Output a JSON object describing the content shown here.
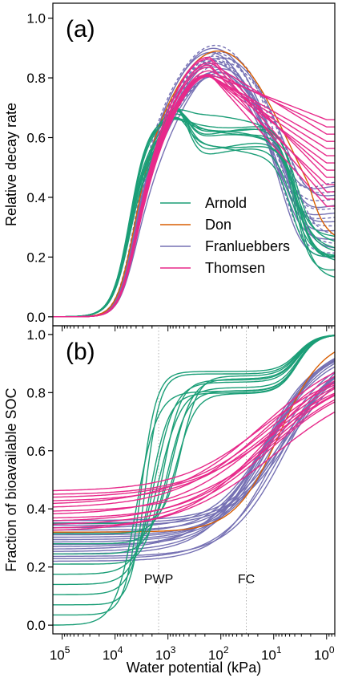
{
  "chart_data": [
    {
      "panel_label": "(a)",
      "type": "line",
      "ylabel": "Relative decay rate",
      "xlabel": "",
      "x_scale": "log-reversed",
      "xlim_kPa": [
        150000,
        0.7
      ],
      "ylim": [
        -0.03,
        1.05
      ],
      "yticks": [
        "0.0",
        "0.2",
        "0.4",
        "0.6",
        "0.8",
        "1.0"
      ],
      "legend": {
        "placement": "center-right",
        "entries": [
          {
            "name": "Arnold",
            "color": "#1b9e77"
          },
          {
            "name": "Don",
            "color": "#d95f02"
          },
          {
            "name": "Franluebbers",
            "color": "#7570b3"
          },
          {
            "name": "Thomsen",
            "color": "#e7298a"
          }
        ]
      },
      "series": [
        {
          "name": "Arnold",
          "color": "#1b9e77",
          "dashed": false,
          "count": 11,
          "peak_range": [
            0.65,
            0.72
          ],
          "plateau_range": [
            0.55,
            0.66
          ],
          "end_range": [
            0.11,
            0.25
          ]
        },
        {
          "name": "Don",
          "color": "#d95f02",
          "dashed": false,
          "count": 1,
          "peak": 0.89,
          "end": 0.25
        },
        {
          "name": "Franluebbers",
          "color": "#7570b3",
          "dashed": "mixed",
          "count": 18,
          "peak_range": [
            0.78,
            0.91
          ],
          "end_range": [
            0.2,
            0.46
          ]
        },
        {
          "name": "Thomsen",
          "color": "#e7298a",
          "dashed": false,
          "count": 13,
          "peak_range": [
            0.8,
            0.87
          ],
          "end_range": [
            0.37,
            0.66
          ]
        }
      ]
    },
    {
      "panel_label": "(b)",
      "type": "line",
      "ylabel": "Fraction of bioavailable SOC",
      "xlabel": "Water potential (kPa)",
      "x_scale": "log-reversed",
      "xlim_kPa": [
        150000,
        0.7
      ],
      "ylim": [
        -0.03,
        1.03
      ],
      "yticks": [
        "0.0",
        "0.2",
        "0.4",
        "0.6",
        "0.8",
        "1.0"
      ],
      "xticks": [
        {
          "base": "10",
          "exp": "5",
          "value": 100000
        },
        {
          "base": "10",
          "exp": "4",
          "value": 10000
        },
        {
          "base": "10",
          "exp": "3",
          "value": 1000
        },
        {
          "base": "10",
          "exp": "2",
          "value": 100
        },
        {
          "base": "10",
          "exp": "1",
          "value": 10
        },
        {
          "base": "10",
          "exp": "0",
          "value": 1
        }
      ],
      "reference_lines": [
        {
          "label": "PWP",
          "x_kPa": 1500
        },
        {
          "label": "FC",
          "x_kPa": 33
        }
      ],
      "series": [
        {
          "name": "Arnold",
          "color": "#1b9e77",
          "count": 11,
          "start_range": [
            0.0,
            0.35
          ],
          "plateau_range": [
            0.78,
            0.89
          ],
          "end": 1.0
        },
        {
          "name": "Don",
          "color": "#d95f02",
          "count": 1,
          "start": 0.32,
          "end": 0.99
        },
        {
          "name": "Franluebbers",
          "color": "#7570b3",
          "count": 18,
          "start_range": [
            0.22,
            0.36
          ],
          "end_range": [
            0.9,
            0.99
          ]
        },
        {
          "name": "Thomsen",
          "color": "#e7298a",
          "count": 13,
          "start_range": [
            0.32,
            0.46
          ],
          "end_range": [
            0.82,
            0.97
          ]
        }
      ]
    }
  ]
}
